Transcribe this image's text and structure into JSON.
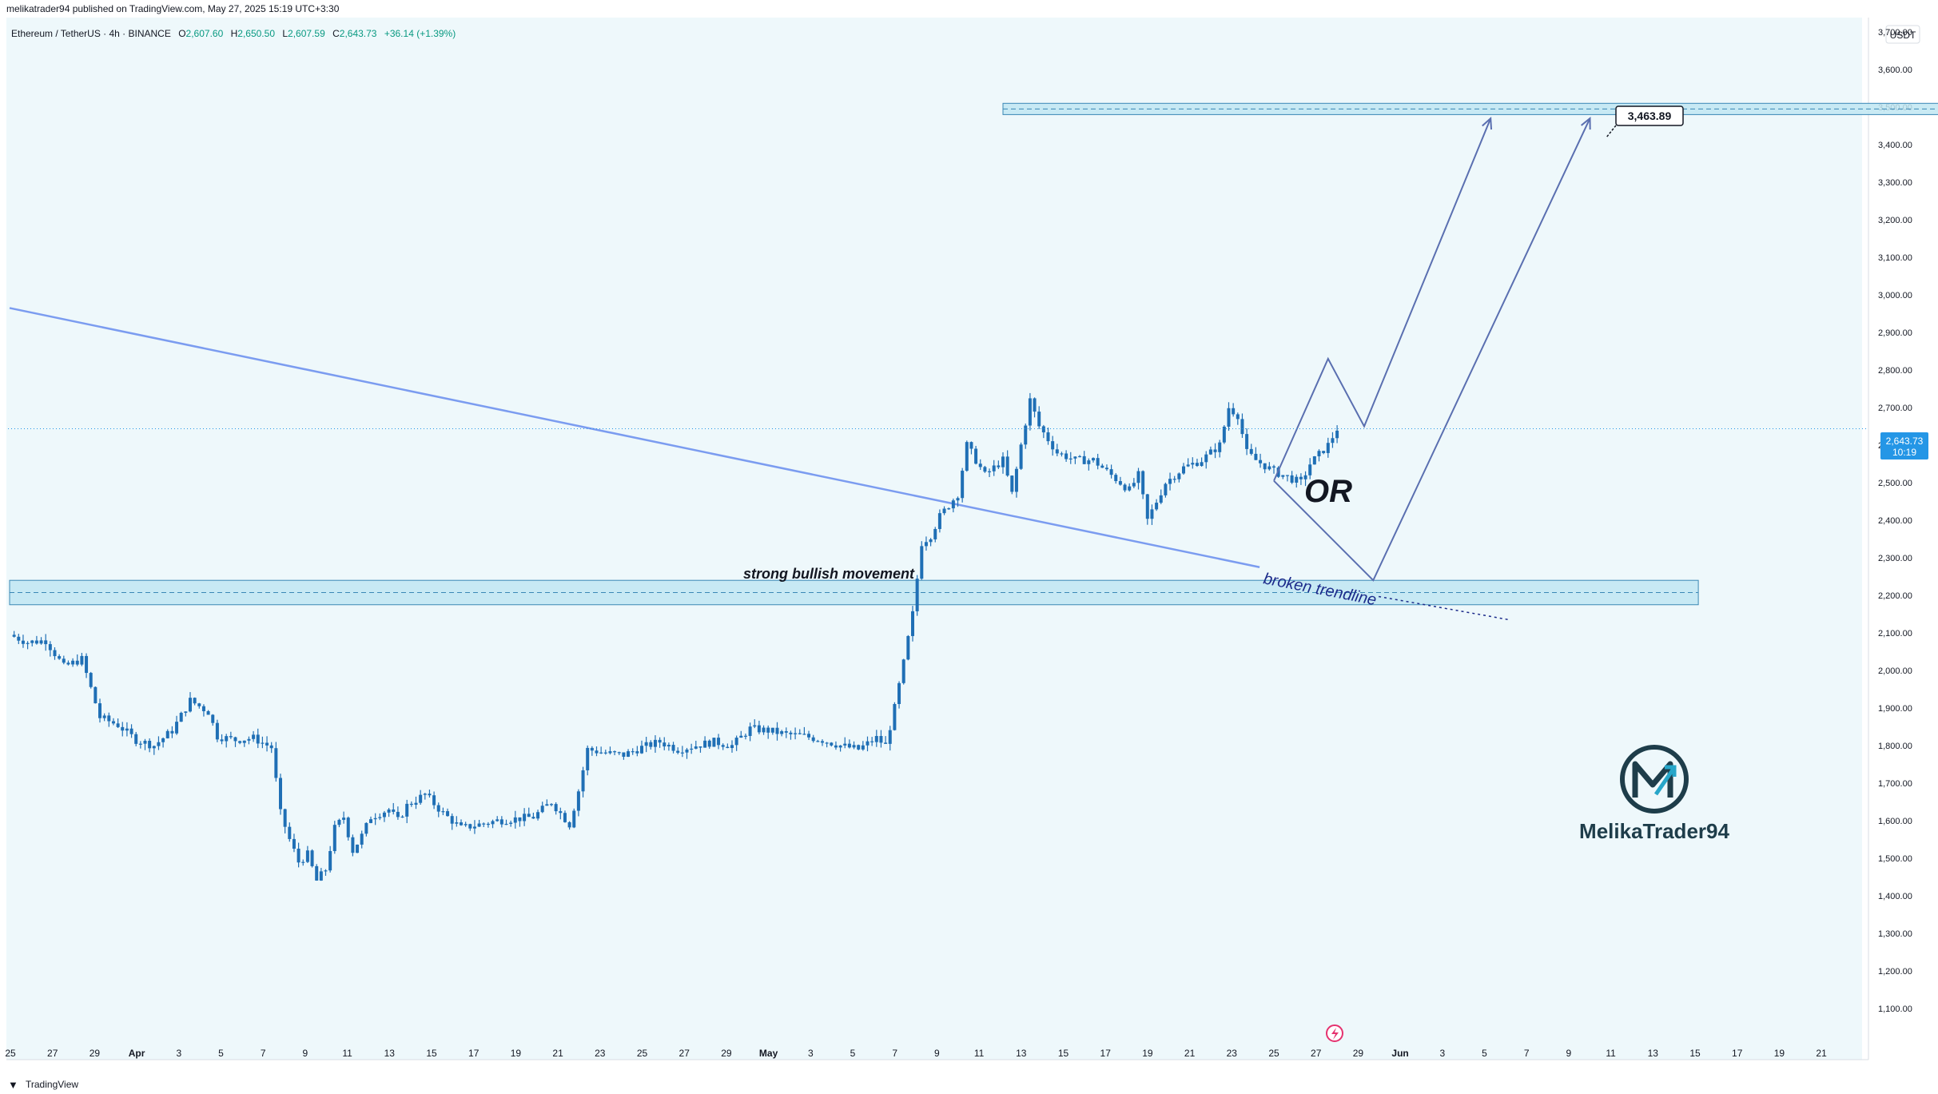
{
  "header": {
    "publisher": "melikatrader94 published on TradingView.com, May 27, 2025 15:19 UTC+3:30"
  },
  "symbol_bar": {
    "symbol": "Ethereum / TetherUS · 4h · BINANCE",
    "open_label": "O",
    "open": "2,607.60",
    "high_label": "H",
    "high": "2,650.50",
    "low_label": "L",
    "low": "2,607.59",
    "close_label": "C",
    "close": "2,643.73",
    "change": "+36.14 (+1.39%)"
  },
  "currency_badge": "USDT",
  "price_tag": {
    "price": "2,643.73",
    "countdown": "10:19"
  },
  "annotations": {
    "bullish": "strong bullish movement",
    "trendline": "broken trendline",
    "or": "OR",
    "target_label": "3,463.89"
  },
  "watermark": {
    "name": "MelikaTrader94"
  },
  "footer": {
    "brand": "TradingView"
  },
  "colors": {
    "background": "#eef8fb",
    "candle": "#1f6fb5",
    "trendline": "#7b9cf0",
    "zone_fill": "#bfe6f2",
    "zone_border": "#3a87b5",
    "path": "#5a6fb0",
    "price_tag": "#2496e6",
    "logo": "#1e3d4a"
  },
  "chart_data": {
    "type": "candlestick",
    "symbol": "ETHUSDT",
    "timeframe": "4h",
    "y_axis": {
      "range": [
        1050,
        3750
      ],
      "ticks": [
        "3,700.00",
        "3,600.00",
        "3,500.00",
        "3,400.00",
        "3,300.00",
        "3,200.00",
        "3,100.00",
        "3,000.00",
        "2,900.00",
        "2,800.00",
        "2,700.00",
        "2,600.00",
        "2,500.00",
        "2,400.00",
        "2,300.00",
        "2,200.00",
        "2,100.00",
        "2,000.00",
        "1,900.00",
        "1,800.00",
        "1,700.00",
        "1,600.00",
        "1,500.00",
        "1,400.00",
        "1,300.00",
        "1,200.00",
        "1,100.00"
      ]
    },
    "x_axis": {
      "ticks": [
        "25",
        "27",
        "29",
        "Apr",
        "3",
        "5",
        "7",
        "9",
        "11",
        "13",
        "15",
        "17",
        "19",
        "21",
        "23",
        "25",
        "27",
        "29",
        "May",
        "3",
        "5",
        "7",
        "9",
        "11",
        "13",
        "15",
        "17",
        "19",
        "21",
        "23",
        "25",
        "27",
        "29",
        "Jun",
        "3",
        "5",
        "7",
        "9",
        "11",
        "13",
        "15",
        "17",
        "19",
        "21"
      ]
    },
    "price_path": [
      [
        0,
        2095
      ],
      [
        2,
        2075
      ],
      [
        4,
        2080
      ],
      [
        6,
        2010
      ],
      [
        8,
        2030
      ],
      [
        10,
        1875
      ],
      [
        12,
        1855
      ],
      [
        14,
        1815
      ],
      [
        16,
        1800
      ],
      [
        18,
        1840
      ],
      [
        20,
        1920
      ],
      [
        22,
        1890
      ],
      [
        23,
        1825
      ],
      [
        25,
        1815
      ],
      [
        27,
        1820
      ],
      [
        29,
        1795
      ],
      [
        30,
        1620
      ],
      [
        31,
        1550
      ],
      [
        32,
        1490
      ],
      [
        33,
        1510
      ],
      [
        34,
        1440
      ],
      [
        35,
        1470
      ],
      [
        36,
        1580
      ],
      [
        37,
        1610
      ],
      [
        38,
        1520
      ],
      [
        39,
        1560
      ],
      [
        40,
        1610
      ],
      [
        42,
        1630
      ],
      [
        43,
        1600
      ],
      [
        44,
        1640
      ],
      [
        46,
        1670
      ],
      [
        48,
        1620
      ],
      [
        50,
        1580
      ],
      [
        52,
        1590
      ],
      [
        54,
        1600
      ],
      [
        56,
        1605
      ],
      [
        58,
        1610
      ],
      [
        60,
        1650
      ],
      [
        62,
        1590
      ],
      [
        63,
        1680
      ],
      [
        64,
        1790
      ],
      [
        66,
        1780
      ],
      [
        68,
        1775
      ],
      [
        70,
        1795
      ],
      [
        72,
        1810
      ],
      [
        74,
        1790
      ],
      [
        76,
        1800
      ],
      [
        78,
        1810
      ],
      [
        80,
        1800
      ],
      [
        82,
        1845
      ],
      [
        84,
        1840
      ],
      [
        86,
        1830
      ],
      [
        88,
        1825
      ],
      [
        90,
        1815
      ],
      [
        92,
        1800
      ],
      [
        94,
        1790
      ],
      [
        96,
        1820
      ],
      [
        97,
        1800
      ],
      [
        98,
        1900
      ],
      [
        99,
        2020
      ],
      [
        100,
        2150
      ],
      [
        101,
        2340
      ],
      [
        102,
        2360
      ],
      [
        103,
        2410
      ],
      [
        105,
        2470
      ],
      [
        106,
        2600
      ],
      [
        108,
        2520
      ],
      [
        110,
        2560
      ],
      [
        111,
        2470
      ],
      [
        112,
        2600
      ],
      [
        113,
        2720
      ],
      [
        114,
        2650
      ],
      [
        116,
        2580
      ],
      [
        118,
        2560
      ],
      [
        120,
        2560
      ],
      [
        122,
        2520
      ],
      [
        124,
        2480
      ],
      [
        125,
        2520
      ],
      [
        126,
        2400
      ],
      [
        128,
        2500
      ],
      [
        130,
        2540
      ],
      [
        132,
        2560
      ],
      [
        134,
        2600
      ],
      [
        135,
        2700
      ],
      [
        136,
        2680
      ],
      [
        137,
        2580
      ],
      [
        138,
        2560
      ],
      [
        140,
        2530
      ],
      [
        142,
        2510
      ],
      [
        143,
        2500
      ],
      [
        144,
        2550
      ],
      [
        146,
        2600
      ],
      [
        147,
        2643.73
      ]
    ],
    "series": [
      {
        "name": "",
        "style": "descending line",
        "points": [
          [
            0,
            2965
          ],
          [
            137,
            2275
          ]
        ]
      },
      {
        "name": "",
        "style": "dotted extension",
        "points": [
          [
            137,
            2265
          ],
          [
            165,
            2135
          ]
        ]
      }
    ],
    "zones": [
      {
        "name": "",
        "price_range": [
          2175,
          2240
        ],
        "x_range": [
          0,
          187
        ]
      },
      {
        "name": "",
        "price_range": [
          3480,
          3510
        ],
        "x_range": [
          110,
          220
        ]
      }
    ],
    "projections": [
      {
        "name": "",
        "points": [
          [
            140,
            2505
          ],
          [
            146,
            2830
          ],
          [
            150,
            2650
          ],
          [
            164,
            3470
          ]
        ]
      },
      {
        "name": "",
        "points": [
          [
            140,
            2505
          ],
          [
            151,
            2240
          ],
          [
            175,
            3470
          ]
        ]
      }
    ],
    "target_price": 3463.89,
    "last_price": 2643.73,
    "grid": false
  }
}
